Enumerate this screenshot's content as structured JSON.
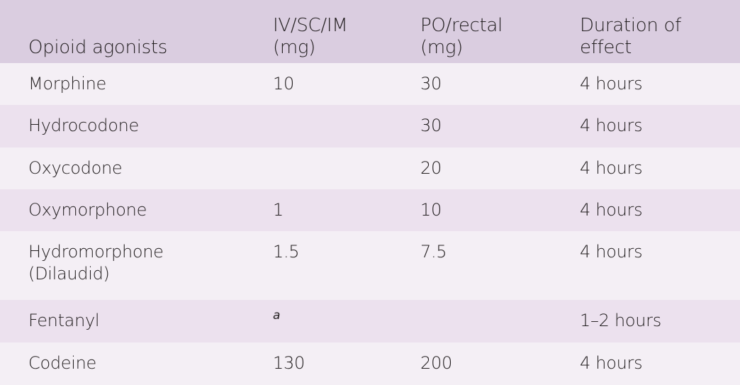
{
  "headers": [
    "Opioid agonists",
    "IV/SC/IM\n(mg)",
    "PO/rectal\n(mg)",
    "Duration of\neffect"
  ],
  "header_lines": [
    [
      "Opioid agonists"
    ],
    [
      "IV/SC/IM",
      "(mg)"
    ],
    [
      "PO/rectal",
      "(mg)"
    ],
    [
      "Duration of",
      "effect"
    ]
  ],
  "rows": [
    {
      "name": [
        "Morphine"
      ],
      "iv": "10",
      "po": "30",
      "duration": "4 hours"
    },
    {
      "name": [
        "Hydrocodone"
      ],
      "iv": "",
      "po": "30",
      "duration": "4 hours"
    },
    {
      "name": [
        "Oxycodone"
      ],
      "iv": "",
      "po": "20",
      "duration": "4 hours"
    },
    {
      "name": [
        "Oxymorphone"
      ],
      "iv": "1",
      "po": "10",
      "duration": "4 hours"
    },
    {
      "name": [
        "Hydromorphone",
        "(Dilaudid)"
      ],
      "iv": "1.5",
      "po": "7.5",
      "duration": "4 hours"
    },
    {
      "name": [
        "Fentanyl"
      ],
      "iv_footnote": "a",
      "iv": "",
      "po": "",
      "duration": "1–2 hours"
    },
    {
      "name": [
        "Codeine"
      ],
      "iv": "130",
      "po": "200",
      "duration": "4 hours"
    }
  ],
  "colors": {
    "header_bg": "#dacde0",
    "row_light": "#f4eff5",
    "row_dark": "#ece1ee",
    "text": "#231f20"
  }
}
